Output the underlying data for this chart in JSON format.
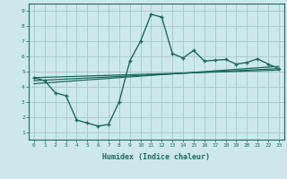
{
  "xlabel": "Humidex (Indice chaleur)",
  "ylabel": "",
  "bg_color": "#cde8ec",
  "grid_color": "#aacccc",
  "line_color": "#1a6b5e",
  "xlim": [
    -0.5,
    23.5
  ],
  "ylim": [
    0.5,
    9.5
  ],
  "xticks": [
    0,
    1,
    2,
    3,
    4,
    5,
    6,
    7,
    8,
    9,
    10,
    11,
    12,
    13,
    14,
    15,
    16,
    17,
    18,
    19,
    20,
    21,
    22,
    23
  ],
  "yticks": [
    1,
    2,
    3,
    4,
    5,
    6,
    7,
    8,
    9
  ],
  "main_x": [
    0,
    1,
    2,
    3,
    4,
    5,
    6,
    7,
    8,
    9,
    10,
    11,
    12,
    13,
    14,
    15,
    16,
    17,
    18,
    19,
    20,
    21,
    22,
    23
  ],
  "main_y": [
    4.6,
    4.4,
    3.6,
    3.4,
    1.8,
    1.6,
    1.4,
    1.5,
    3.0,
    5.7,
    7.0,
    8.8,
    8.6,
    6.2,
    5.9,
    6.4,
    5.7,
    5.75,
    5.8,
    5.5,
    5.6,
    5.85,
    5.5,
    5.2
  ],
  "line1_x": [
    0,
    23
  ],
  "line1_y": [
    4.6,
    5.1
  ],
  "line2_x": [
    0,
    23
  ],
  "line2_y": [
    4.4,
    5.2
  ],
  "line3_x": [
    0,
    23
  ],
  "line3_y": [
    4.2,
    5.35
  ]
}
